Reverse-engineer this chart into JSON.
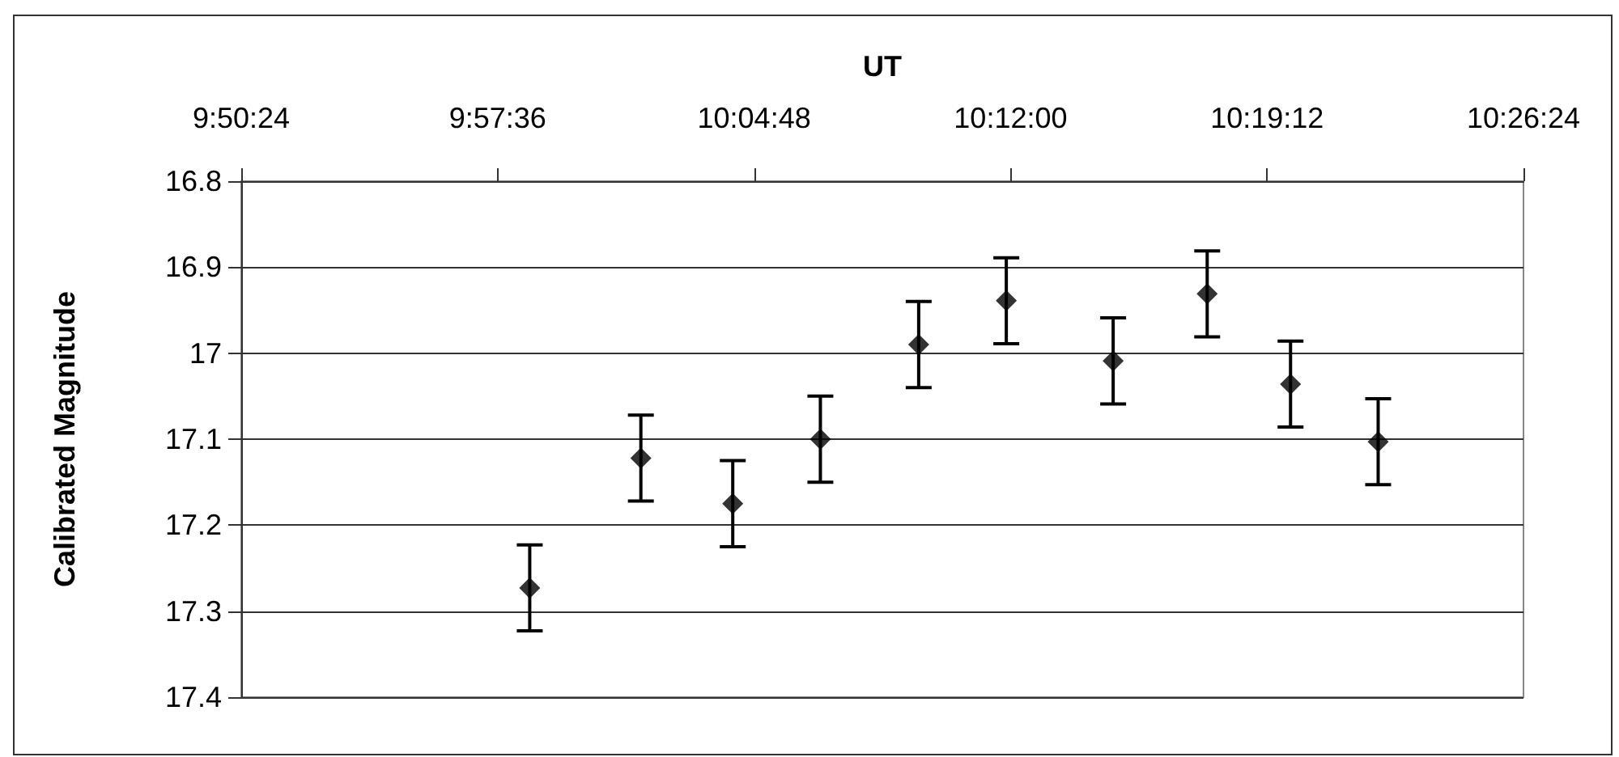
{
  "chart_data": {
    "type": "scatter",
    "xlabel": "UT",
    "ylabel": "Calibrated Magnitude",
    "x": [
      9.975,
      10.027,
      10.07,
      10.111,
      10.157,
      10.198,
      10.248,
      10.292,
      10.331,
      10.372
    ],
    "series": [
      {
        "color": "#000000",
        "values": [
          17.273,
          17.122,
          17.175,
          17.1,
          16.99,
          16.939,
          17.009,
          16.931,
          17.036,
          17.103
        ],
        "errors": [
          0.05,
          0.05,
          0.05,
          0.05,
          0.05,
          0.05,
          0.05,
          0.05,
          0.05,
          0.05
        ]
      }
    ],
    "xlim": [
      9.84,
      10.44
    ],
    "xticks": [
      {
        "value": 9.84,
        "label": "9:50:24"
      },
      {
        "value": 9.96,
        "label": "9:57:36"
      },
      {
        "value": 10.08,
        "label": "10:04:48"
      },
      {
        "value": 10.2,
        "label": "10:12:00"
      },
      {
        "value": 10.32,
        "label": "10:19:12"
      },
      {
        "value": 10.44,
        "label": "10:26:24"
      }
    ],
    "ylim": [
      17.4,
      16.8
    ],
    "yticks": [
      16.8,
      16.9,
      17,
      17.1,
      17.2,
      17.3,
      17.4
    ],
    "grid": "y",
    "marker": "diamond"
  }
}
